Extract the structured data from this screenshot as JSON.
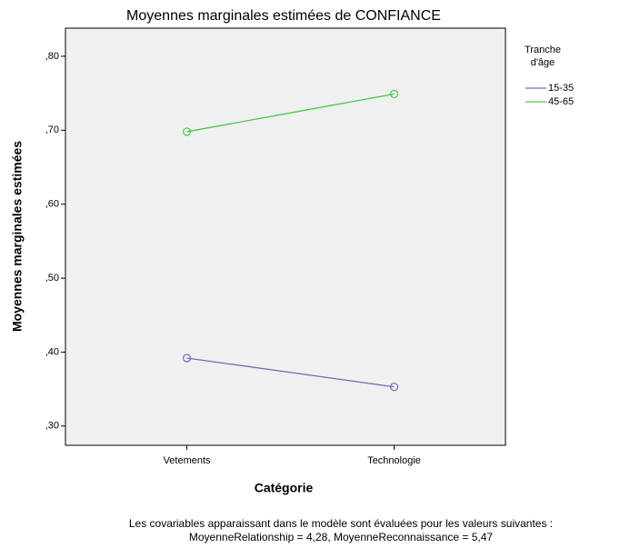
{
  "chart_data": {
    "type": "line",
    "title": "Moyennes marginales estimées de CONFIANCE",
    "x_label": "Catégorie",
    "y_label": "Moyennes marginales estimées",
    "legend_title": [
      "Tranche",
      "d'âge"
    ],
    "categories": [
      "Vetements",
      "Technologie"
    ],
    "series": [
      {
        "name": "15-35",
        "color": "#6b6fb8",
        "values": [
          0.392,
          0.353
        ]
      },
      {
        "name": "45-65",
        "color": "#4cc64c",
        "values": [
          0.698,
          0.749
        ]
      }
    ],
    "ylim": [
      0.274,
      0.838
    ],
    "yticks": [
      {
        "value": 0.3,
        "label": ",30"
      },
      {
        "value": 0.4,
        "label": ",40"
      },
      {
        "value": 0.5,
        "label": ",50"
      },
      {
        "value": 0.6,
        "label": ",60"
      },
      {
        "value": 0.7,
        "label": ",70"
      },
      {
        "value": 0.8,
        "label": ",80"
      }
    ],
    "legend_position": "right",
    "footnote": [
      "Les covariables apparaissant dans le modèle sont évaluées pour les valeurs suivantes :",
      "MoyenneRelationship = 4,28, MoyenneReconnaissance = 5,47"
    ]
  }
}
